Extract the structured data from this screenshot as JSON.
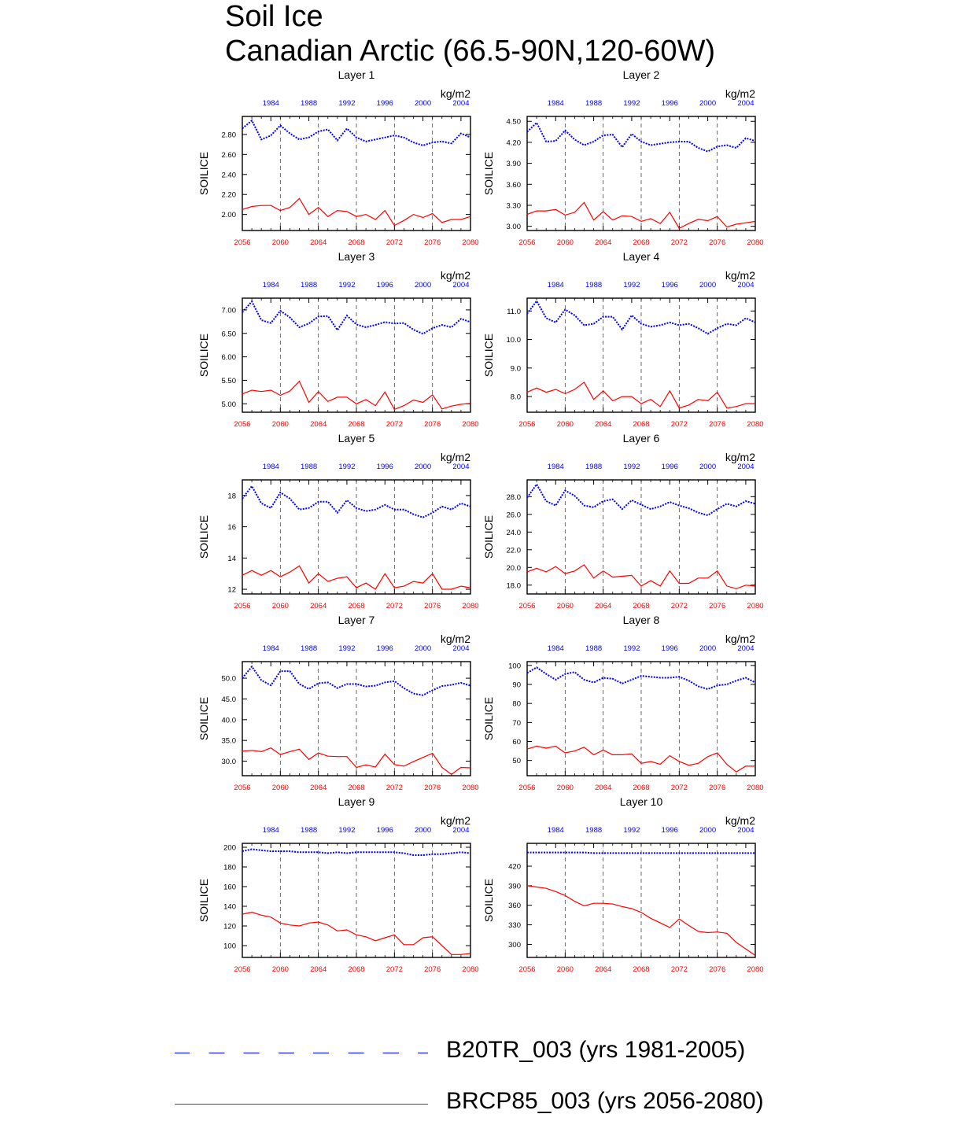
{
  "title": "Soil Ice",
  "subtitle": "Canadian Arctic (66.5-90N,120-60W)",
  "colors": {
    "historical": "#0000ff",
    "future": "#ff0000",
    "axis": "#000000"
  },
  "legend": [
    {
      "label": "B20TR_003 (yrs 1981-2005)",
      "color": "#0000ff",
      "style": "dashed"
    },
    {
      "label": "BRCP85_003 (yrs 2056-2080)",
      "color": "#ff0000",
      "style": "solid"
    }
  ],
  "chart_data": [
    {
      "type": "line",
      "title": "Layer 1",
      "ylabel": "SOILICE",
      "units": "kg/m2",
      "xlim_bottom": [
        2056,
        2080
      ],
      "xlim_top": [
        1981,
        2005
      ],
      "xticks_bottom": [
        "2056",
        "2060",
        "2064",
        "2068",
        "2072",
        "2076",
        "2080"
      ],
      "xticks_top": [
        "1984",
        "1988",
        "1992",
        "1996",
        "2000",
        "2004"
      ],
      "ylim": [
        1.84,
        2.98
      ],
      "yticks": [
        "2.00",
        "2.20",
        "2.40",
        "2.60",
        "2.80"
      ],
      "series": [
        {
          "name": "B20TR_003 (yrs 1981-2005)",
          "values": [
            2.86,
            2.94,
            2.75,
            2.79,
            2.89,
            2.81,
            2.75,
            2.77,
            2.83,
            2.85,
            2.74,
            2.86,
            2.77,
            2.73,
            2.75,
            2.77,
            2.79,
            2.77,
            2.72,
            2.69,
            2.72,
            2.73,
            2.71,
            2.81,
            2.77
          ]
        },
        {
          "name": "BRCP85_003 (yrs 2056-2080)",
          "values": [
            2.05,
            2.08,
            2.09,
            2.09,
            2.04,
            2.07,
            2.16,
            2.0,
            2.07,
            1.98,
            2.04,
            2.03,
            1.98,
            2.0,
            1.95,
            2.04,
            1.89,
            1.94,
            2.0,
            1.97,
            2.01,
            1.92,
            1.95,
            1.95,
            1.98
          ]
        }
      ]
    },
    {
      "type": "line",
      "title": "Layer 2",
      "ylabel": "SOILICE",
      "units": "kg/m2",
      "xlim_bottom": [
        2056,
        2080
      ],
      "xlim_top": [
        1981,
        2005
      ],
      "xticks_bottom": [
        "2056",
        "2060",
        "2064",
        "2068",
        "2072",
        "2076",
        "2080"
      ],
      "xticks_top": [
        "1984",
        "1988",
        "1992",
        "1996",
        "2000",
        "2004"
      ],
      "ylim": [
        2.94,
        4.57
      ],
      "yticks": [
        "3.00",
        "3.30",
        "3.60",
        "3.90",
        "4.20",
        "4.50"
      ],
      "series": [
        {
          "name": "B20TR_003 (yrs 1981-2005)",
          "values": [
            4.35,
            4.48,
            4.21,
            4.22,
            4.37,
            4.24,
            4.16,
            4.21,
            4.3,
            4.31,
            4.13,
            4.32,
            4.21,
            4.16,
            4.18,
            4.2,
            4.21,
            4.21,
            4.12,
            4.07,
            4.14,
            4.16,
            4.12,
            4.26,
            4.22
          ]
        },
        {
          "name": "BRCP85_003 (yrs 2056-2080)",
          "values": [
            3.17,
            3.22,
            3.22,
            3.24,
            3.16,
            3.2,
            3.34,
            3.09,
            3.21,
            3.09,
            3.15,
            3.14,
            3.07,
            3.11,
            3.04,
            3.2,
            2.97,
            3.04,
            3.1,
            3.08,
            3.14,
            2.99,
            3.03,
            3.05,
            3.07
          ]
        }
      ]
    },
    {
      "type": "line",
      "title": "Layer 3",
      "ylabel": "SOILICE",
      "units": "kg/m2",
      "xlim_bottom": [
        2056,
        2080
      ],
      "xlim_top": [
        1981,
        2005
      ],
      "xticks_bottom": [
        "2056",
        "2060",
        "2064",
        "2068",
        "2072",
        "2076",
        "2080"
      ],
      "xticks_top": [
        "1984",
        "1988",
        "1992",
        "1996",
        "2000",
        "2004"
      ],
      "ylim": [
        4.82,
        7.25
      ],
      "yticks": [
        "5.00",
        "5.50",
        "6.00",
        "6.50",
        "7.00"
      ],
      "series": [
        {
          "name": "B20TR_003 (yrs 1981-2005)",
          "values": [
            6.95,
            7.18,
            6.78,
            6.72,
            6.98,
            6.84,
            6.63,
            6.71,
            6.86,
            6.87,
            6.57,
            6.88,
            6.69,
            6.63,
            6.68,
            6.74,
            6.71,
            6.72,
            6.58,
            6.49,
            6.61,
            6.68,
            6.63,
            6.81,
            6.74
          ]
        },
        {
          "name": "BRCP85_003 (yrs 2056-2080)",
          "values": [
            5.21,
            5.29,
            5.26,
            5.29,
            5.18,
            5.27,
            5.48,
            5.03,
            5.26,
            5.05,
            5.14,
            5.14,
            5.0,
            5.09,
            4.96,
            5.25,
            4.88,
            4.96,
            5.08,
            5.03,
            5.19,
            4.89,
            4.95,
            4.99,
            5.01
          ]
        }
      ]
    },
    {
      "type": "line",
      "title": "Layer 4",
      "ylabel": "SOILICE",
      "units": "kg/m2",
      "xlim_bottom": [
        2056,
        2080
      ],
      "xlim_top": [
        1981,
        2005
      ],
      "xticks_bottom": [
        "2056",
        "2060",
        "2064",
        "2068",
        "2072",
        "2076",
        "2080"
      ],
      "xticks_top": [
        "1984",
        "1988",
        "1992",
        "1996",
        "2000",
        "2004"
      ],
      "ylim": [
        7.45,
        11.45
      ],
      "yticks": [
        "8.0",
        "9.0",
        "10.0",
        "11.0"
      ],
      "series": [
        {
          "name": "B20TR_003 (yrs 1981-2005)",
          "values": [
            10.9,
            11.35,
            10.75,
            10.6,
            11.05,
            10.85,
            10.5,
            10.55,
            10.8,
            10.8,
            10.35,
            10.85,
            10.55,
            10.45,
            10.5,
            10.6,
            10.5,
            10.55,
            10.4,
            10.2,
            10.4,
            10.55,
            10.5,
            10.75,
            10.6
          ]
        },
        {
          "name": "BRCP85_003 (yrs 2056-2080)",
          "values": [
            8.15,
            8.3,
            8.15,
            8.25,
            8.1,
            8.25,
            8.5,
            7.9,
            8.2,
            7.85,
            8.0,
            8.0,
            7.75,
            7.9,
            7.65,
            8.2,
            7.6,
            7.7,
            7.9,
            7.85,
            8.15,
            7.6,
            7.65,
            7.75,
            7.75
          ]
        }
      ]
    },
    {
      "type": "line",
      "title": "Layer 5",
      "ylabel": "SOILICE",
      "units": "kg/m2",
      "xlim_bottom": [
        2056,
        2080
      ],
      "xlim_top": [
        1981,
        2005
      ],
      "xticks_bottom": [
        "2056",
        "2060",
        "2064",
        "2068",
        "2072",
        "2076",
        "2080"
      ],
      "xticks_top": [
        "1984",
        "1988",
        "1992",
        "1996",
        "2000",
        "2004"
      ],
      "ylim": [
        11.7,
        19.0
      ],
      "yticks": [
        "12",
        "14",
        "16",
        "18"
      ],
      "series": [
        {
          "name": "B20TR_003 (yrs 1981-2005)",
          "values": [
            17.8,
            18.6,
            17.5,
            17.2,
            18.2,
            17.8,
            17.1,
            17.2,
            17.6,
            17.6,
            16.9,
            17.7,
            17.2,
            17.0,
            17.1,
            17.4,
            17.1,
            17.1,
            16.8,
            16.6,
            16.9,
            17.3,
            17.1,
            17.5,
            17.3
          ]
        },
        {
          "name": "BRCP85_003 (yrs 2056-2080)",
          "values": [
            12.9,
            13.2,
            12.9,
            13.2,
            12.8,
            13.1,
            13.5,
            12.4,
            13.0,
            12.5,
            12.7,
            12.8,
            12.1,
            12.4,
            12.0,
            13.0,
            12.1,
            12.2,
            12.5,
            12.4,
            13.0,
            12.0,
            12.0,
            12.2,
            12.1
          ]
        }
      ]
    },
    {
      "type": "line",
      "title": "Layer 6",
      "ylabel": "SOILICE",
      "units": "kg/m2",
      "xlim_bottom": [
        2056,
        2080
      ],
      "xlim_top": [
        1981,
        2005
      ],
      "xticks_bottom": [
        "2056",
        "2060",
        "2064",
        "2068",
        "2072",
        "2076",
        "2080"
      ],
      "xticks_top": [
        "1984",
        "1988",
        "1992",
        "1996",
        "2000",
        "2004"
      ],
      "ylim": [
        17.0,
        29.9
      ],
      "yticks": [
        "18.0",
        "20.0",
        "22.0",
        "24.0",
        "26.0",
        "28.0"
      ],
      "series": [
        {
          "name": "B20TR_003 (yrs 1981-2005)",
          "values": [
            27.9,
            29.4,
            27.5,
            27.0,
            28.7,
            28.1,
            27.0,
            26.8,
            27.5,
            27.7,
            26.6,
            27.6,
            27.1,
            26.6,
            26.9,
            27.4,
            27.0,
            26.7,
            26.2,
            25.9,
            26.6,
            27.2,
            26.9,
            27.5,
            27.2
          ]
        },
        {
          "name": "BRCP85_003 (yrs 2056-2080)",
          "values": [
            19.5,
            19.9,
            19.5,
            20.1,
            19.3,
            19.6,
            20.3,
            18.8,
            19.6,
            18.9,
            19.0,
            19.1,
            17.9,
            18.5,
            17.9,
            19.6,
            18.2,
            18.2,
            18.8,
            18.8,
            19.6,
            17.9,
            17.6,
            18.0,
            17.9
          ]
        }
      ]
    },
    {
      "type": "line",
      "title": "Layer 7",
      "ylabel": "SOILICE",
      "units": "kg/m2",
      "xlim_bottom": [
        2056,
        2080
      ],
      "xlim_top": [
        1981,
        2005
      ],
      "xticks_bottom": [
        "2056",
        "2060",
        "2064",
        "2068",
        "2072",
        "2076",
        "2080"
      ],
      "xticks_top": [
        "1984",
        "1988",
        "1992",
        "1996",
        "2000",
        "2004"
      ],
      "ylim": [
        26.5,
        54.0
      ],
      "yticks": [
        "30.0",
        "35.0",
        "40.0",
        "45.0",
        "50.0"
      ],
      "series": [
        {
          "name": "B20TR_003 (yrs 1981-2005)",
          "values": [
            50.0,
            52.8,
            49.5,
            48.3,
            51.7,
            51.7,
            48.6,
            47.4,
            48.8,
            49.0,
            47.6,
            48.6,
            48.6,
            48.0,
            48.2,
            49.0,
            49.3,
            47.6,
            46.3,
            45.9,
            47.1,
            48.1,
            48.4,
            48.9,
            48.2
          ]
        },
        {
          "name": "BRCP85_003 (yrs 2056-2080)",
          "values": [
            32.4,
            32.6,
            32.3,
            33.2,
            31.6,
            32.3,
            32.9,
            30.4,
            32.0,
            31.2,
            31.1,
            31.1,
            28.5,
            29.1,
            28.6,
            31.7,
            29.2,
            28.8,
            29.9,
            30.9,
            31.9,
            28.5,
            26.8,
            28.5,
            28.4
          ]
        }
      ]
    },
    {
      "type": "line",
      "title": "Layer 8",
      "ylabel": "SOILICE",
      "units": "kg/m2",
      "xlim_bottom": [
        2056,
        2080
      ],
      "xlim_top": [
        1981,
        2005
      ],
      "xticks_bottom": [
        "2056",
        "2060",
        "2064",
        "2068",
        "2072",
        "2076",
        "2080"
      ],
      "xticks_top": [
        "1984",
        "1988",
        "1992",
        "1996",
        "2000",
        "2004"
      ],
      "ylim": [
        42.0,
        102.0
      ],
      "yticks": [
        "50",
        "60",
        "70",
        "80",
        "90",
        "100"
      ],
      "series": [
        {
          "name": "B20TR_003 (yrs 1981-2005)",
          "values": [
            96.0,
            99.0,
            95.5,
            92.5,
            95.5,
            96.5,
            92.5,
            91.0,
            93.5,
            93.0,
            90.5,
            92.5,
            94.5,
            94.0,
            93.5,
            93.5,
            94.0,
            92.0,
            89.0,
            87.5,
            89.5,
            90.0,
            92.0,
            93.5,
            91.0
          ]
        },
        {
          "name": "BRCP85_003 (yrs 2056-2080)",
          "values": [
            56.0,
            57.5,
            56.5,
            57.5,
            54.0,
            55.0,
            57.0,
            53.0,
            55.5,
            53.0,
            53.0,
            53.5,
            48.5,
            49.5,
            48.0,
            52.5,
            49.5,
            47.5,
            48.5,
            52.0,
            54.0,
            48.0,
            44.0,
            47.0,
            47.0
          ]
        }
      ]
    },
    {
      "type": "line",
      "title": "Layer 9",
      "ylabel": "SOILICE",
      "units": "kg/m2",
      "xlim_bottom": [
        2056,
        2080
      ],
      "xlim_top": [
        1981,
        2005
      ],
      "xticks_bottom": [
        "2056",
        "2060",
        "2064",
        "2068",
        "2072",
        "2076",
        "2080"
      ],
      "xticks_top": [
        "1984",
        "1988",
        "1992",
        "1996",
        "2000",
        "2004"
      ],
      "ylim": [
        88.0,
        204.0
      ],
      "yticks": [
        "100",
        "120",
        "140",
        "160",
        "180",
        "200"
      ],
      "series": [
        {
          "name": "B20TR_003 (yrs 1981-2005)",
          "values": [
            196,
            198,
            197,
            196,
            196,
            196,
            195,
            195,
            195,
            194,
            195,
            194,
            195,
            195,
            195,
            195,
            195,
            194,
            192,
            192,
            193,
            193,
            194,
            195,
            194
          ]
        },
        {
          "name": "BRCP85_003 (yrs 2056-2080)",
          "values": [
            132,
            134,
            131,
            129,
            123,
            121,
            120,
            123,
            124,
            121,
            115,
            116,
            111,
            109,
            105,
            108,
            111,
            101,
            101,
            108,
            109,
            100,
            91,
            91,
            92
          ]
        }
      ]
    },
    {
      "type": "line",
      "title": "Layer 10",
      "ylabel": "SOILICE",
      "units": "kg/m2",
      "xlim_bottom": [
        2056,
        2080
      ],
      "xlim_top": [
        1981,
        2005
      ],
      "xticks_bottom": [
        "2056",
        "2060",
        "2064",
        "2068",
        "2072",
        "2076",
        "2080"
      ],
      "xticks_top": [
        "1984",
        "1988",
        "1992",
        "1996",
        "2000",
        "2004"
      ],
      "ylim": [
        280.0,
        455.0
      ],
      "yticks": [
        "300",
        "330",
        "360",
        "390",
        "420"
      ],
      "series": [
        {
          "name": "B20TR_003 (yrs 1981-2005)",
          "values": [
            441,
            441,
            441,
            441,
            441,
            441,
            441,
            440,
            440,
            440,
            440,
            440,
            440,
            440,
            440,
            440,
            440,
            440,
            440,
            440,
            440,
            440,
            440,
            440,
            440
          ]
        },
        {
          "name": "BRCP85_003 (yrs 2056-2080)",
          "values": [
            390,
            388,
            386,
            381,
            375,
            366,
            359,
            363,
            363,
            362,
            358,
            355,
            349,
            340,
            333,
            326,
            339,
            329,
            320,
            318,
            319,
            317,
            303,
            293,
            283
          ]
        }
      ]
    }
  ]
}
